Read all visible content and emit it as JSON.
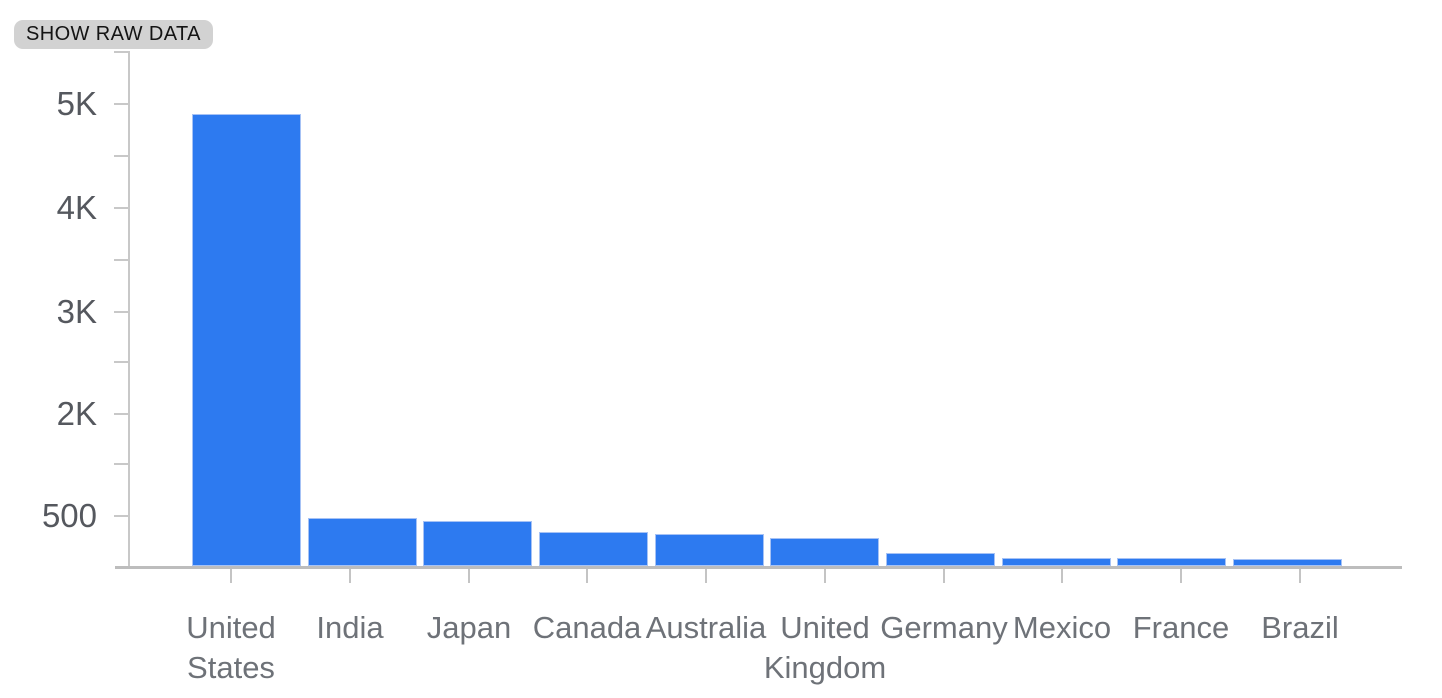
{
  "toolbar": {
    "show_raw_data_label": "SHOW RAW DATA"
  },
  "chart_data": {
    "type": "bar",
    "title": "",
    "categories": [
      "United States",
      "India",
      "Japan",
      "Canada",
      "Australia",
      "United Kingdom",
      "Germany",
      "Mexico",
      "France",
      "Brazil"
    ],
    "values": [
      4900,
      480,
      450,
      340,
      320,
      280,
      130,
      80,
      80,
      75
    ],
    "xlabel": "",
    "ylabel": "",
    "y_axis": {
      "tick_labels": [
        "5K",
        "4K",
        "3K",
        "2K",
        "500"
      ],
      "tick_values": [
        5000,
        4000,
        3000,
        2000,
        500
      ],
      "range": [
        0,
        5500
      ]
    },
    "legend_position": "none",
    "grid": "off",
    "colors": {
      "bar": "#2d7af0",
      "bar_edge": "#a6c2f5",
      "axis": "#c8c8c8",
      "baseline": "#bdbdbd",
      "y_label_text": "#55585e",
      "x_label_text": "#6e7278",
      "button_bg": "#d2d2d2",
      "button_text": "#141414"
    }
  }
}
